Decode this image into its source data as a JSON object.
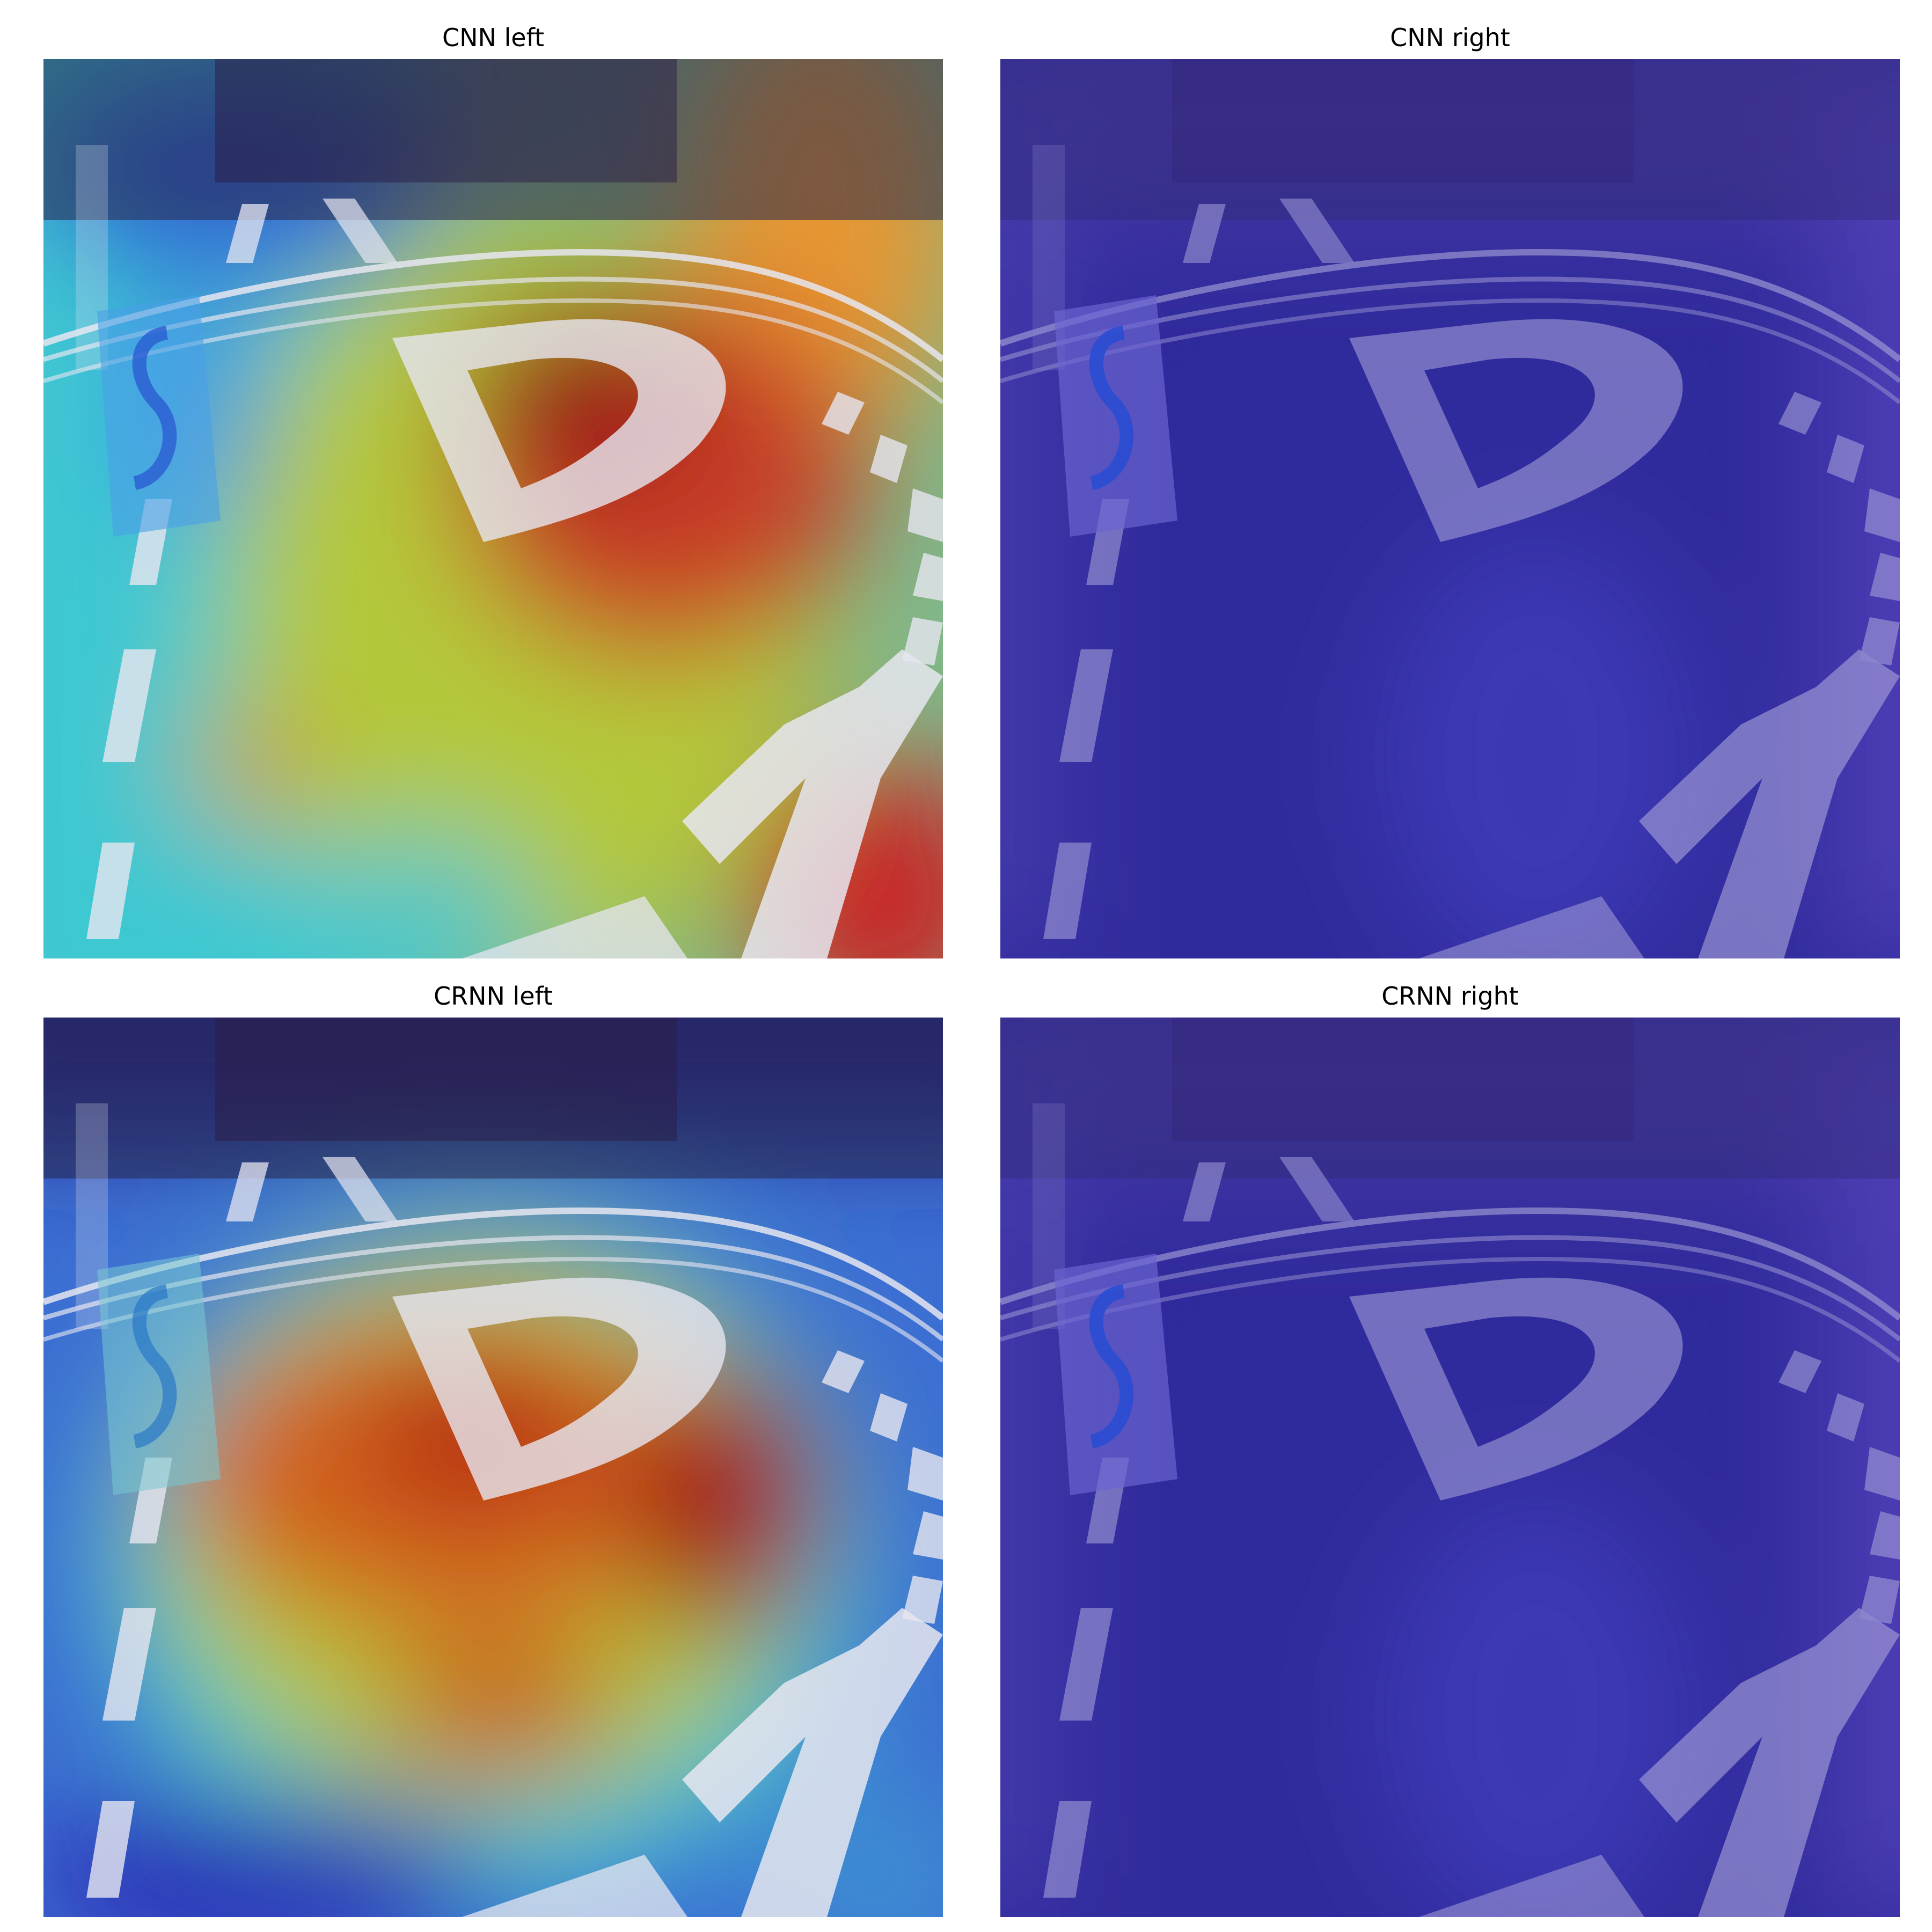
{
  "panels": [
    {
      "title": "CNN left",
      "heatmap": "cnn-left"
    },
    {
      "title": "CNN right",
      "heatmap": "none"
    },
    {
      "title": "CRNN left",
      "heatmap": "crnn-left"
    },
    {
      "title": "CRNN right",
      "heatmap": "none"
    }
  ],
  "colors": {
    "jet_low": "#2b2bc8",
    "jet_mid_cyan": "#3cc8e6",
    "jet_mid_yellow": "#e6e632",
    "jet_high": "#b41e1e",
    "flat_overlay": "#3c32b4",
    "road_marking": "#e6e6f0"
  },
  "icons": [
    "parking-sign-icon"
  ]
}
